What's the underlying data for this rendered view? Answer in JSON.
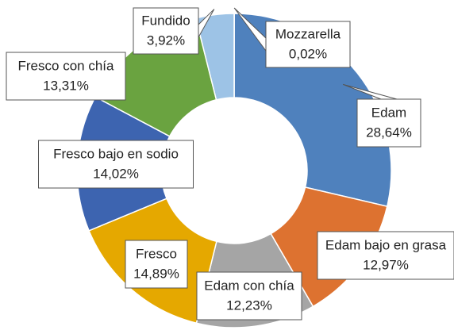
{
  "chart_data": {
    "type": "donut",
    "categories": [
      "Mozzarella",
      "Edam",
      "Edam bajo en grasa",
      "Edam con chía",
      "Fresco",
      "Fresco bajo en sodio",
      "Fresco con chía",
      "Fundido"
    ],
    "values": [
      0.02,
      28.64,
      12.97,
      12.23,
      14.89,
      14.02,
      13.31,
      3.92
    ],
    "value_labels": [
      "0,02%",
      "28,64%",
      "12,97%",
      "12,23%",
      "14,89%",
      "14,02%",
      "13,31%",
      "3,92%"
    ],
    "colors": [
      "#4a7ebb",
      "#4f81bd",
      "#dd7230",
      "#a5a5a5",
      "#e5a800",
      "#3d64b0",
      "#6aa340",
      "#9dc3e6"
    ]
  }
}
